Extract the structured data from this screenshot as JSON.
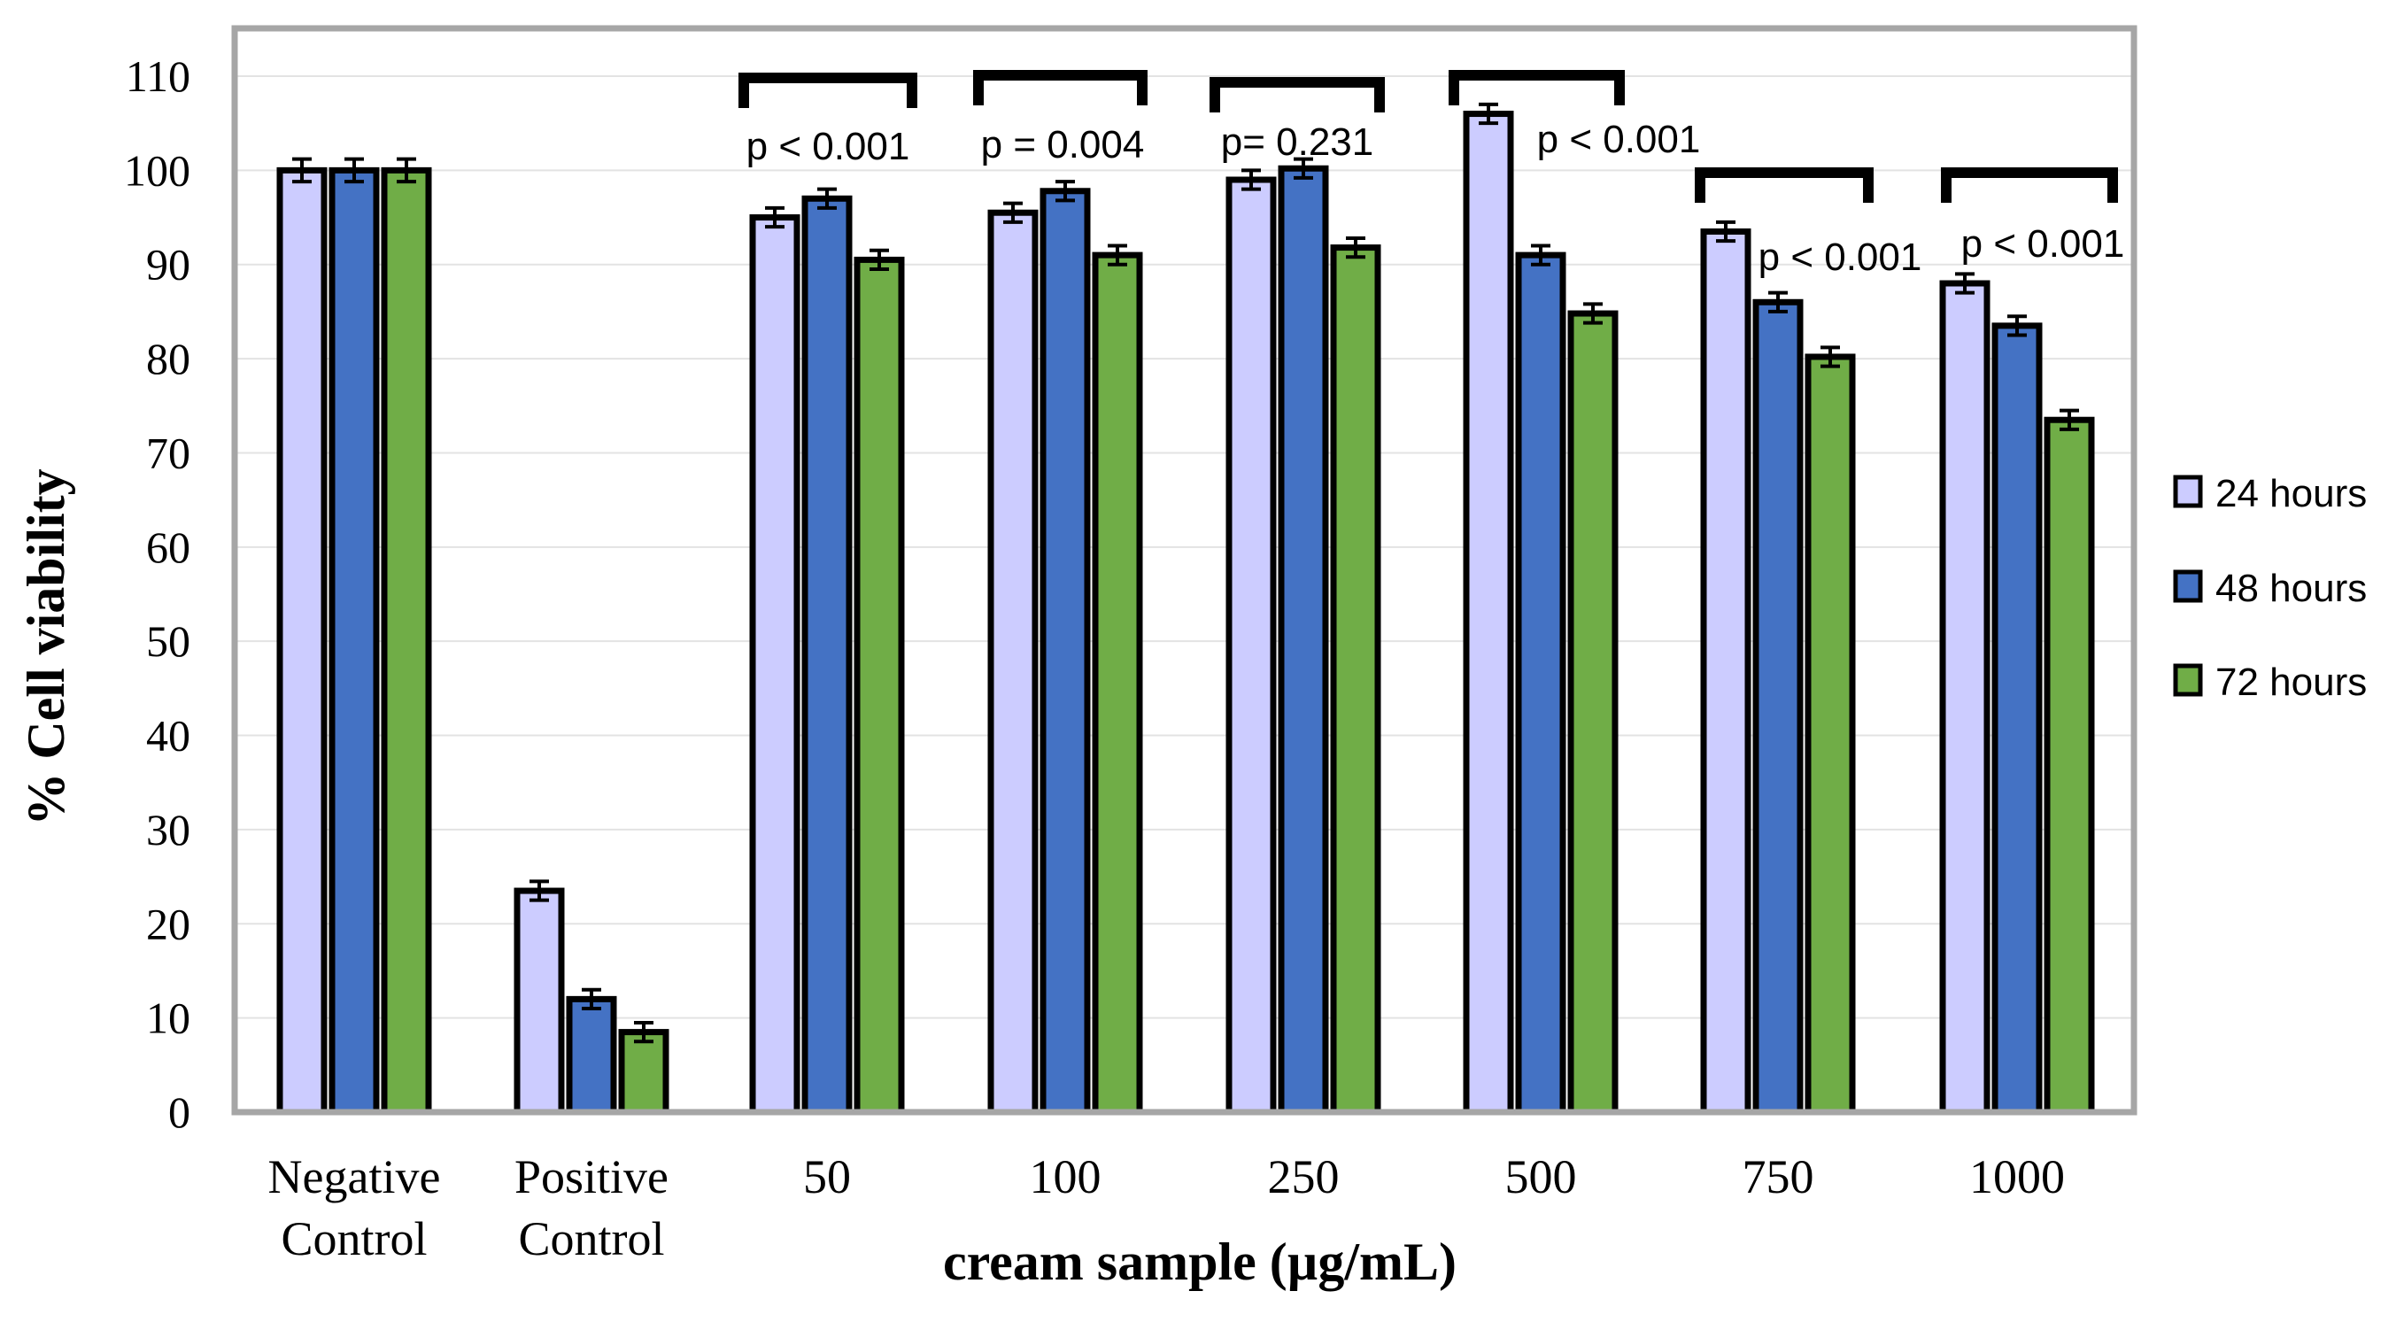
{
  "chart_data": {
    "type": "bar",
    "title": "",
    "xlabel": "cream sample (µg/mL)",
    "ylabel": "% Cell viability",
    "ylim": [
      0,
      110
    ],
    "yticks": [
      0,
      10,
      20,
      30,
      40,
      50,
      60,
      70,
      80,
      90,
      100,
      110
    ],
    "grid": true,
    "legend_position": "right",
    "categories": [
      [
        "Negative",
        "Control"
      ],
      [
        "Positive",
        "Control"
      ],
      [
        "50"
      ],
      [
        "100"
      ],
      [
        "250"
      ],
      [
        "500"
      ],
      [
        "750"
      ],
      [
        "1000"
      ]
    ],
    "series": [
      {
        "name": "24 hours",
        "color": "#CCCCFF",
        "values": [
          100,
          23.5,
          95,
          95.5,
          99,
          106,
          93.5,
          88
        ],
        "errors": [
          1.2,
          1.0,
          1.0,
          1.0,
          1.0,
          1.0,
          1.0,
          1.0
        ]
      },
      {
        "name": "48 hours",
        "color": "#4472C4",
        "values": [
          100,
          12,
          97,
          97.8,
          100.2,
          91,
          86,
          83.5
        ],
        "errors": [
          1.2,
          1.0,
          1.0,
          1.0,
          1.0,
          1.0,
          1.0,
          1.0
        ]
      },
      {
        "name": "72 hours",
        "color": "#70AD47",
        "values": [
          100,
          8.5,
          90.5,
          91,
          91.8,
          84.8,
          80.2,
          73.5
        ],
        "errors": [
          1.2,
          1.0,
          1.0,
          1.0,
          1.0,
          1.0,
          1.0,
          1.0
        ]
      }
    ],
    "annotations": [
      {
        "category": "50",
        "text": "p < 0.001"
      },
      {
        "category": "100",
        "text": "p = 0.004"
      },
      {
        "category": "250",
        "text": "p= 0.231"
      },
      {
        "category": "500",
        "text": "p < 0.001"
      },
      {
        "category": "750",
        "text": "p < 0.001"
      },
      {
        "category": "1000",
        "text": "p < 0.001"
      }
    ]
  },
  "colors": {
    "plot_border": "#A6A6A6",
    "gridline": "#E3E3E3",
    "bar_outline": "#000000"
  }
}
